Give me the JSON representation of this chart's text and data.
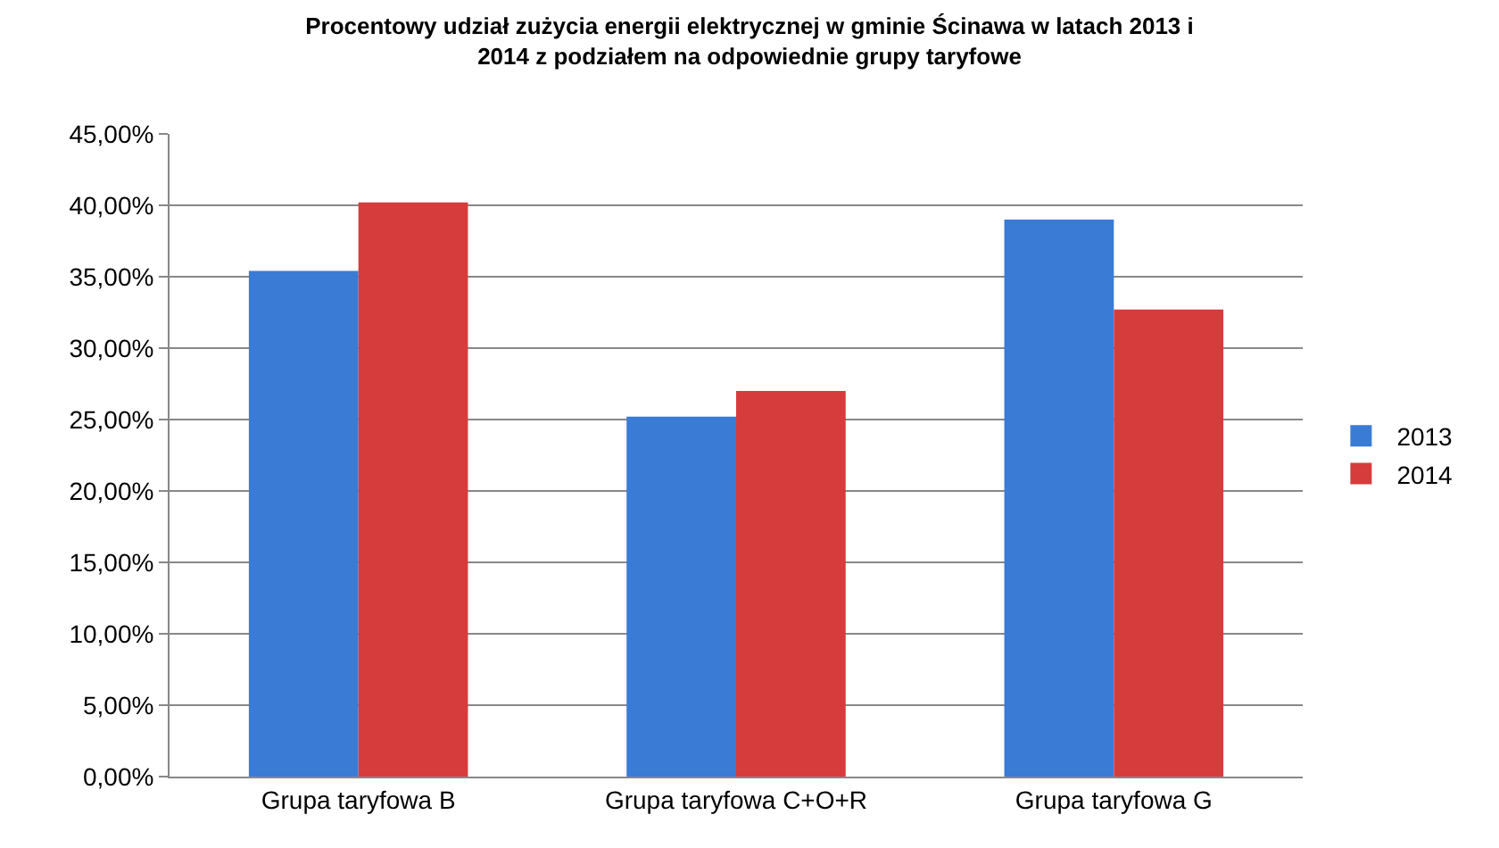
{
  "chart_data": {
    "type": "bar",
    "title": "Procentowy udział zużycia energii elektrycznej w gminie Ścinawa w latach 2013 i\n2014 z podziałem na odpowiednie grupy taryfowe",
    "categories": [
      "Grupa taryfowa B",
      "Grupa taryfowa C+O+R",
      "Grupa taryfowa G"
    ],
    "series": [
      {
        "name": "2013",
        "color": "#3a7bd5",
        "values": [
          35.4,
          25.2,
          39.0
        ]
      },
      {
        "name": "2014",
        "color": "#d63c3c",
        "values": [
          40.2,
          27.0,
          32.7
        ]
      }
    ],
    "ylim": [
      0,
      45
    ],
    "yticks": [
      {
        "value": 0,
        "label": "0,00%"
      },
      {
        "value": 5,
        "label": "5,00%"
      },
      {
        "value": 10,
        "label": "10,00%"
      },
      {
        "value": 15,
        "label": "15,00%"
      },
      {
        "value": 20,
        "label": "20,00%"
      },
      {
        "value": 25,
        "label": "25,00%"
      },
      {
        "value": 30,
        "label": "30,00%"
      },
      {
        "value": 35,
        "label": "35,00%"
      },
      {
        "value": 40,
        "label": "40,00%"
      },
      {
        "value": 45,
        "label": "45,00%"
      }
    ],
    "grid": "y",
    "legend": "right"
  }
}
